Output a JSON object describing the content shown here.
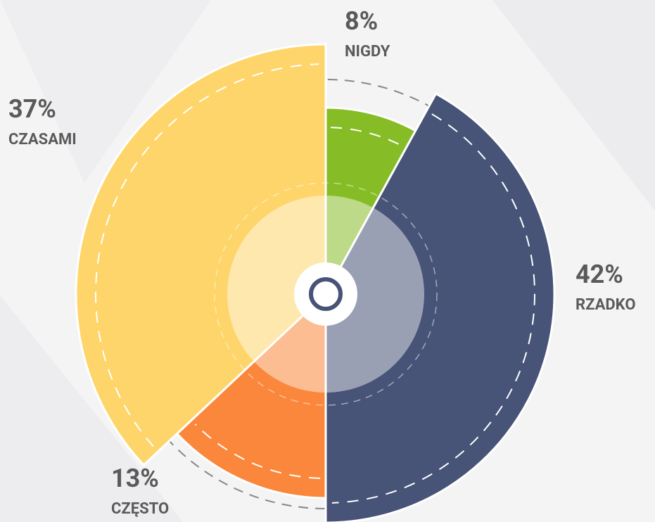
{
  "chart_data": {
    "type": "pie",
    "categories": [
      "NIGDY",
      "RZADKO",
      "CZĘSTO",
      "CZASAMI"
    ],
    "values": [
      8,
      42,
      13,
      37
    ],
    "value_labels": [
      "8%",
      "42%",
      "13%",
      "37%"
    ],
    "colors": [
      "#86bc25",
      "#475377",
      "#fa873b",
      "#fed56a"
    ]
  }
}
